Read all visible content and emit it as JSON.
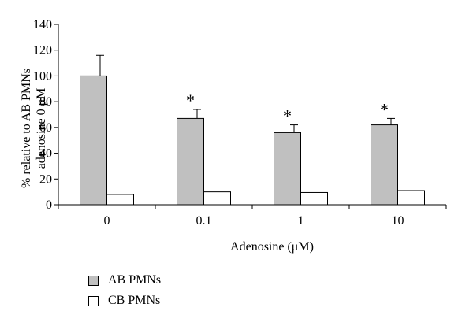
{
  "chart_data": {
    "type": "bar",
    "categories": [
      "0",
      "0.1",
      "1",
      "10"
    ],
    "xlabel": "Adenosine (μM)",
    "ylabel_line1": "% relative to AB PMNs",
    "ylabel_line2": "adenosine 0 μM",
    "ylim": [
      0,
      140
    ],
    "yticks": [
      "0",
      "20",
      "40",
      "60",
      "80",
      "100",
      "120",
      "140"
    ],
    "series": [
      {
        "name": "AB PMNs",
        "color": "#c0c0c0",
        "values": [
          100,
          67,
          56,
          62
        ],
        "errors": [
          16,
          7,
          6,
          5
        ],
        "annotations": [
          "",
          "*",
          "*",
          "*"
        ]
      },
      {
        "name": "CB PMNs",
        "color": "#ffffff",
        "values": [
          8,
          10,
          9.5,
          11
        ],
        "errors": [
          0,
          0,
          0,
          0
        ],
        "annotations": [
          "",
          "",
          "",
          ""
        ]
      }
    ],
    "grid": false,
    "legend_position": "bottom-left"
  }
}
